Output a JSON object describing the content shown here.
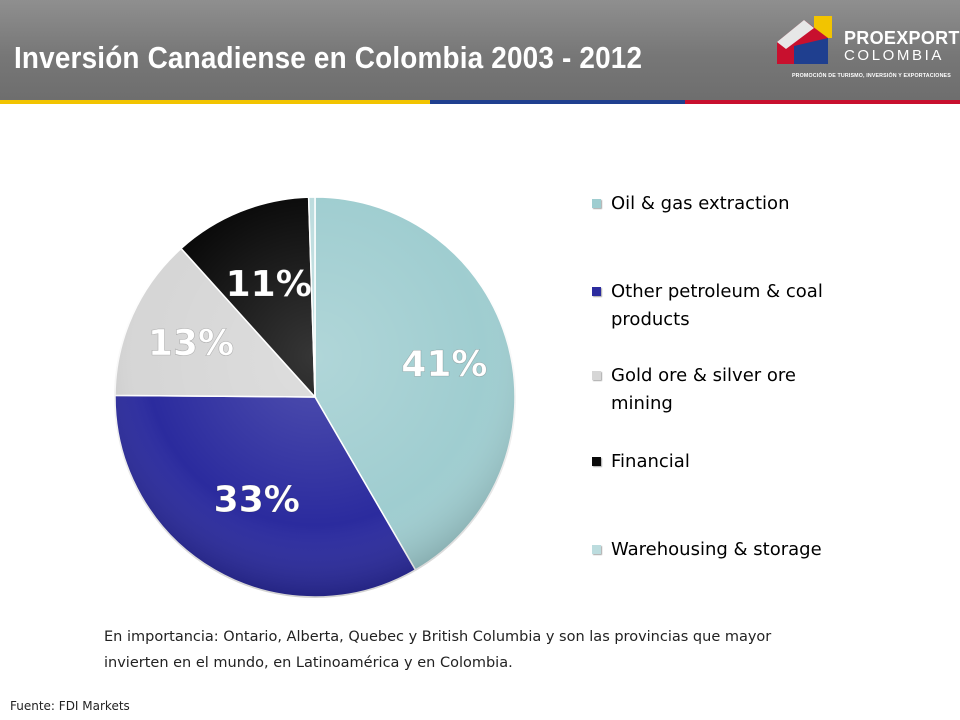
{
  "header": {
    "title": "Inversión Canadiense en Colombia 2003 - 2012"
  },
  "logo": {
    "name": "PROEXPORT",
    "subname": "COLOMBIA",
    "tagline": "PROMOCIÓN DE TURISMO, INVERSIÓN Y EXPORTACIONES"
  },
  "colors": {
    "oil_gas": "#9fcdd0",
    "other_petroleum": "#2b2b9e",
    "gold_silver": "#d6d6d6",
    "financial": "#0a0a0a",
    "warehousing": "#bcdcde"
  },
  "chart_data": {
    "type": "pie",
    "title": "",
    "categories": [
      "Oil & gas extraction",
      "Other petroleum & coal products",
      "Gold ore & silver ore mining",
      "Financial",
      "Warehousing & storage"
    ],
    "values": [
      41,
      33,
      13,
      11,
      0.5
    ],
    "data_labels": [
      "41%",
      "33%",
      "13%",
      "11%",
      ""
    ],
    "legend_position": "right"
  },
  "note": {
    "text": "En importancia: Ontario, Alberta, Quebec y British Columbia y son las provincias que mayor invierten en el mundo, en Latinoamérica y en Colombia."
  },
  "source": {
    "text": "Fuente: FDI Markets"
  }
}
